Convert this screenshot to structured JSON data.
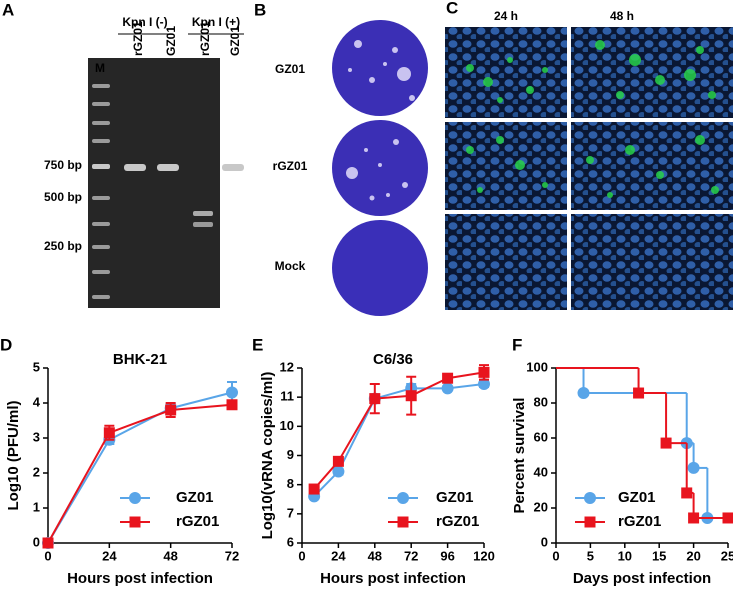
{
  "panels": {
    "A": {
      "label": "A",
      "ladder": "M",
      "groups": [
        "Kpn I (-)",
        "Kpn I (+)"
      ],
      "lanes": [
        "rGZ01",
        "GZ01",
        "rGZ01",
        "GZ01"
      ],
      "markers": [
        "750 bp",
        "500 bp",
        "250 bp"
      ]
    },
    "B": {
      "label": "B",
      "rows": [
        "GZ01",
        "rGZ01",
        "Mock"
      ]
    },
    "C": {
      "label": "C",
      "columns": [
        "24 h",
        "48 h"
      ]
    }
  },
  "chart_data": [
    {
      "type": "line",
      "label": "D",
      "title": "BHK-21",
      "y_label": "Log10 (PFU/ml)",
      "x_label": "Hours post infection",
      "x": [
        0,
        24,
        48,
        72
      ],
      "xlim": [
        0,
        72
      ],
      "xticks": [
        0,
        24,
        48,
        72
      ],
      "ylim": [
        0,
        5
      ],
      "yticks": [
        0,
        1,
        2,
        3,
        4,
        5
      ],
      "series": [
        {
          "name": "GZ01",
          "color": "#59a5e8",
          "marker": "circle",
          "values": [
            0,
            2.95,
            3.85,
            4.3
          ],
          "errors": [
            0,
            0.12,
            0.12,
            0.3
          ]
        },
        {
          "name": "rGZ01",
          "color": "#e8141e",
          "marker": "square",
          "values": [
            0,
            3.15,
            3.8,
            3.95
          ],
          "errors": [
            0,
            0.2,
            0.2,
            0.1
          ]
        }
      ]
    },
    {
      "type": "line",
      "label": "E",
      "title": "C6/36",
      "y_label": "Log10(vRNA copies/ml)",
      "x_label": "Hours post infection",
      "x": [
        8,
        24,
        48,
        72,
        96,
        120
      ],
      "xlim": [
        0,
        120
      ],
      "xticks": [
        0,
        24,
        48,
        72,
        96,
        120
      ],
      "ylim": [
        6,
        12
      ],
      "yticks": [
        6,
        7,
        8,
        9,
        10,
        11,
        12
      ],
      "series": [
        {
          "name": "GZ01",
          "color": "#59a5e8",
          "marker": "circle",
          "values": [
            7.6,
            8.45,
            10.95,
            11.3,
            11.3,
            11.45
          ],
          "errors": [
            0.05,
            0.1,
            0.15,
            0.15,
            0.05,
            0.1
          ]
        },
        {
          "name": "rGZ01",
          "color": "#e8141e",
          "marker": "square",
          "values": [
            7.85,
            8.8,
            10.95,
            11.05,
            11.65,
            11.85
          ],
          "errors": [
            0.05,
            0.1,
            0.5,
            0.65,
            0.1,
            0.25
          ]
        }
      ]
    },
    {
      "type": "step",
      "label": "F",
      "y_label": "Percent survival",
      "x_label": "Days post infection",
      "xlim": [
        0,
        25
      ],
      "xticks": [
        0,
        5,
        10,
        15,
        20,
        25
      ],
      "ylim": [
        0,
        100
      ],
      "yticks": [
        0,
        20,
        40,
        60,
        80,
        100
      ],
      "series": [
        {
          "name": "GZ01",
          "color": "#59a5e8",
          "marker": "circle",
          "x": [
            0,
            4,
            19,
            20,
            22
          ],
          "values": [
            100,
            85.7,
            57.1,
            42.9,
            14.3
          ]
        },
        {
          "name": "rGZ01",
          "color": "#e8141e",
          "marker": "square",
          "x": [
            0,
            12,
            16,
            19,
            20,
            25
          ],
          "values": [
            100,
            85.7,
            57.1,
            28.6,
            14.3,
            14.3
          ]
        }
      ]
    }
  ]
}
